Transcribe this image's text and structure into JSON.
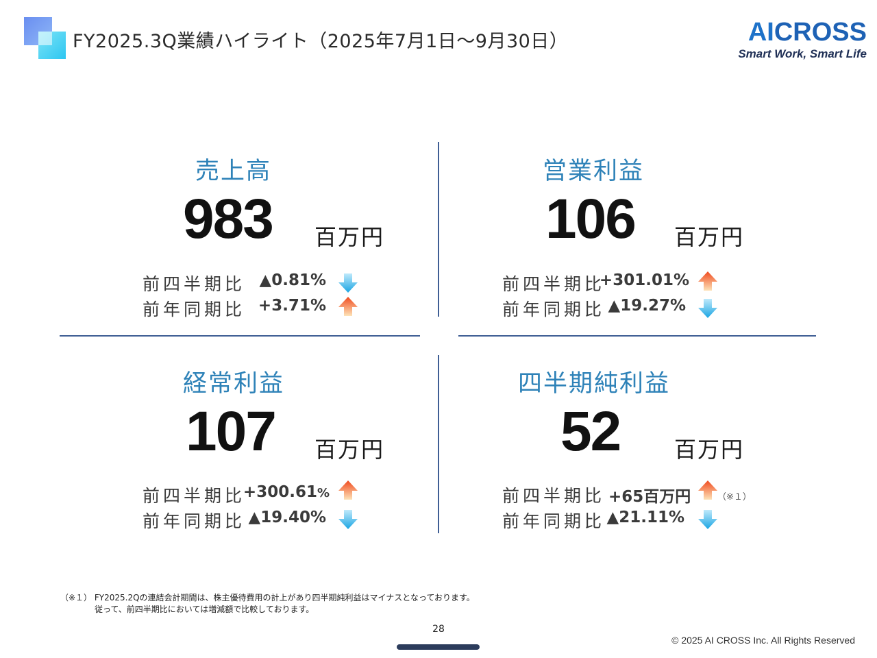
{
  "header": {
    "title": "FY2025.3Q業績ハイライト（2025年7月1日～9月30日）",
    "brand_ai": "AI",
    "brand_rest": "CROSS",
    "brand_tagline": "Smart Work, Smart Life"
  },
  "colors": {
    "accent_title": "#2e82b8",
    "divider": "#3f5e94",
    "arrow_up": "#f0672c",
    "arrow_down": "#35b4ea",
    "brand": "#1e62b5"
  },
  "panels": [
    {
      "title": "売上高",
      "value": "983",
      "unit": "百万円",
      "comparisons": [
        {
          "label": "前四半期比",
          "value": "▲0.81%",
          "direction": "down"
        },
        {
          "label": "前年同期比",
          "value": "+3.71%",
          "direction": "up"
        }
      ]
    },
    {
      "title": "営業利益",
      "value": "106",
      "unit": "百万円",
      "comparisons": [
        {
          "label": "前四半期比",
          "value": "+301.01%",
          "direction": "up"
        },
        {
          "label": "前年同期比",
          "value": "▲19.27%",
          "direction": "down"
        }
      ]
    },
    {
      "title": "経常利益",
      "value": "107",
      "unit": "百万円",
      "comparisons": [
        {
          "label": "前四半期比",
          "value": "+300.61",
          "value_suffix": "%",
          "direction": "up"
        },
        {
          "label": "前年同期比",
          "value": "▲19.40%",
          "direction": "down"
        }
      ]
    },
    {
      "title": "四半期純利益",
      "value": "52",
      "unit": "百万円",
      "comparisons": [
        {
          "label": "前四半期比",
          "value": "+65百万円",
          "direction": "up",
          "note": "（※１）"
        },
        {
          "label": "前年同期比",
          "value": "▲21.11%",
          "direction": "down"
        }
      ]
    }
  ],
  "footnote": {
    "line1": "（※１） FY2025.2Qの連結会計期間は、株主優待費用の計上があり四半期純利益はマイナスとなっております。",
    "line2": "従って、前四半期比においては増減額で比較しております。"
  },
  "footer": {
    "page_number": "28",
    "copyright": "© 2025 AI CROSS Inc. All Rights Reserved"
  }
}
